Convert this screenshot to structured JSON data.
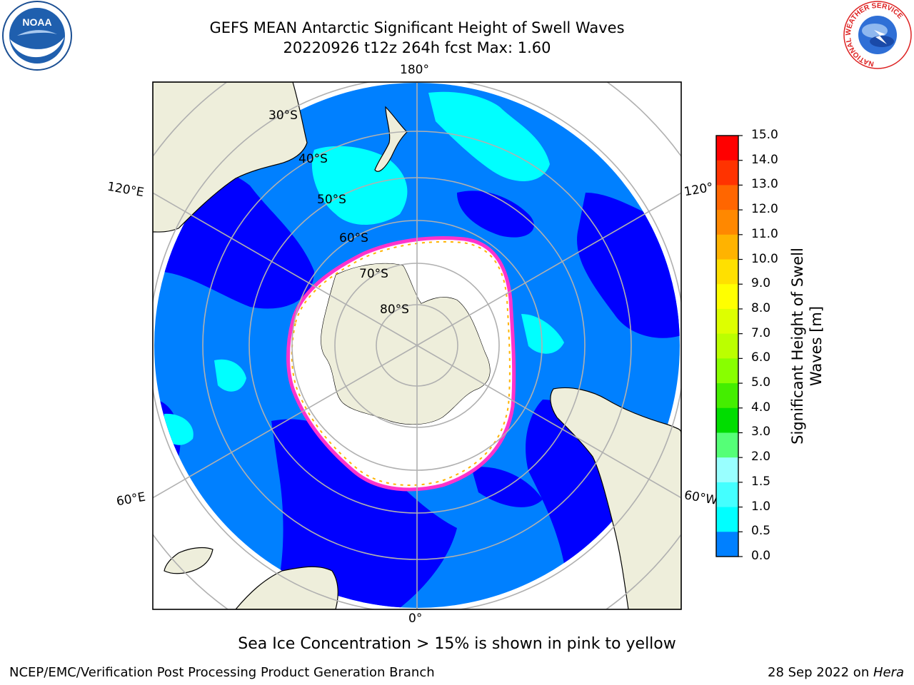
{
  "header": {
    "title_line1": "GEFS MEAN Antarctic Significant Height of Swell Waves",
    "title_line2": "20220926 t12z 264h fcst   Max: 1.60"
  },
  "map": {
    "projection": "south polar stereographic",
    "longitude_labels": {
      "top": "180°",
      "bottom": "0°",
      "left_upper": "120°E",
      "left_lower": "60°E",
      "right_upper": "120°",
      "right_lower": "60°W"
    },
    "latitude_labels": [
      "30°S",
      "40°S",
      "50°S",
      "60°S",
      "70°S",
      "80°S"
    ],
    "colors": {
      "land": "#eeeedb",
      "ice": "#ffffff",
      "grid": "#b0b0b0"
    }
  },
  "colorbar": {
    "label": "Significant Height of Swell Waves [m]",
    "ticks": [
      "15.0",
      "14.0",
      "13.0",
      "12.0",
      "11.0",
      "10.0",
      "9.0",
      "8.0",
      "7.0",
      "6.0",
      "5.0",
      "4.0",
      "3.0",
      "2.0",
      "1.5",
      "1.0",
      "0.5",
      "0.0"
    ],
    "colors": [
      "#ff0000",
      "#ff3300",
      "#ff6600",
      "#ff8800",
      "#ffb300",
      "#ffe000",
      "#ffff00",
      "#ddff00",
      "#bbff00",
      "#88ff00",
      "#44ee00",
      "#00dd00",
      "#55ff77",
      "#99ffff",
      "#44ffff",
      "#00ffff",
      "#0080ff",
      "#0000ff"
    ]
  },
  "legend_note": "Sea Ice Concentration > 15% is shown in pink to yellow",
  "footer": {
    "left": "NCEP/EMC/Verification Post Processing Product Generation Branch",
    "date": "28 Sep 2022 on ",
    "machine": "Hera"
  },
  "logos": {
    "left": "NOAA",
    "right_ring": "NATIONAL WEATHER SERVICE"
  }
}
